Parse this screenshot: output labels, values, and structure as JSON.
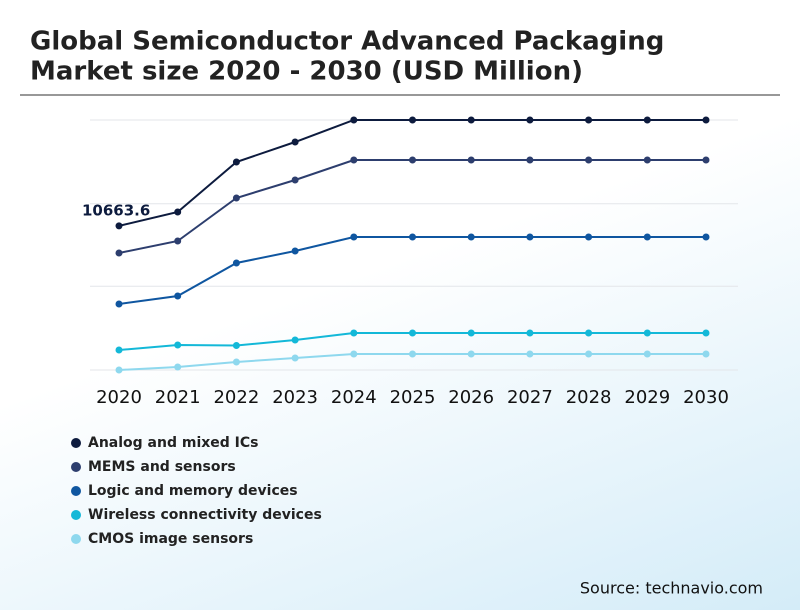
{
  "chart_data": {
    "type": "line",
    "title_lines": [
      "Global Semiconductor Advanced Packaging",
      "Market size 2020 - 2030 (USD Million)"
    ],
    "categories": [
      "2020",
      "2021",
      "2022",
      "2023",
      "2024",
      "2025",
      "2026",
      "2027",
      "2028",
      "2029",
      "2030"
    ],
    "series": [
      {
        "name": "Analog and mixed ICs",
        "color": "#0d1b3e",
        "values": [
          10663.6,
          11692,
          15392,
          16872,
          18500,
          18500,
          18500,
          18500,
          18500,
          18500,
          18500
        ]
      },
      {
        "name": "MEMS and sensors",
        "color": "#2d3e6e",
        "values": [
          8658,
          9546,
          12728,
          14060,
          15540,
          15540,
          15540,
          15540,
          15540,
          15540,
          15540
        ]
      },
      {
        "name": "Logic and memory devices",
        "color": "#0f56a0",
        "values": [
          4884,
          5476,
          7918,
          8806,
          9842,
          9842,
          9842,
          9842,
          9842,
          9842,
          9842
        ]
      },
      {
        "name": "Wireless connectivity devices",
        "color": "#13b8d8",
        "values": [
          1480,
          1850,
          1813,
          2220,
          2738,
          2738,
          2738,
          2738,
          2738,
          2738,
          2738
        ]
      },
      {
        "name": "CMOS image sensors",
        "color": "#8ed8ee",
        "values": [
          0,
          222,
          592,
          888,
          1184,
          1184,
          1184,
          1184,
          1184,
          1184,
          1184
        ]
      }
    ],
    "ylim": [
      0,
      18500
    ],
    "yticks": [
      0,
      6200,
      12300,
      18500
    ],
    "grid": true,
    "source": "Source: technavio.com"
  }
}
